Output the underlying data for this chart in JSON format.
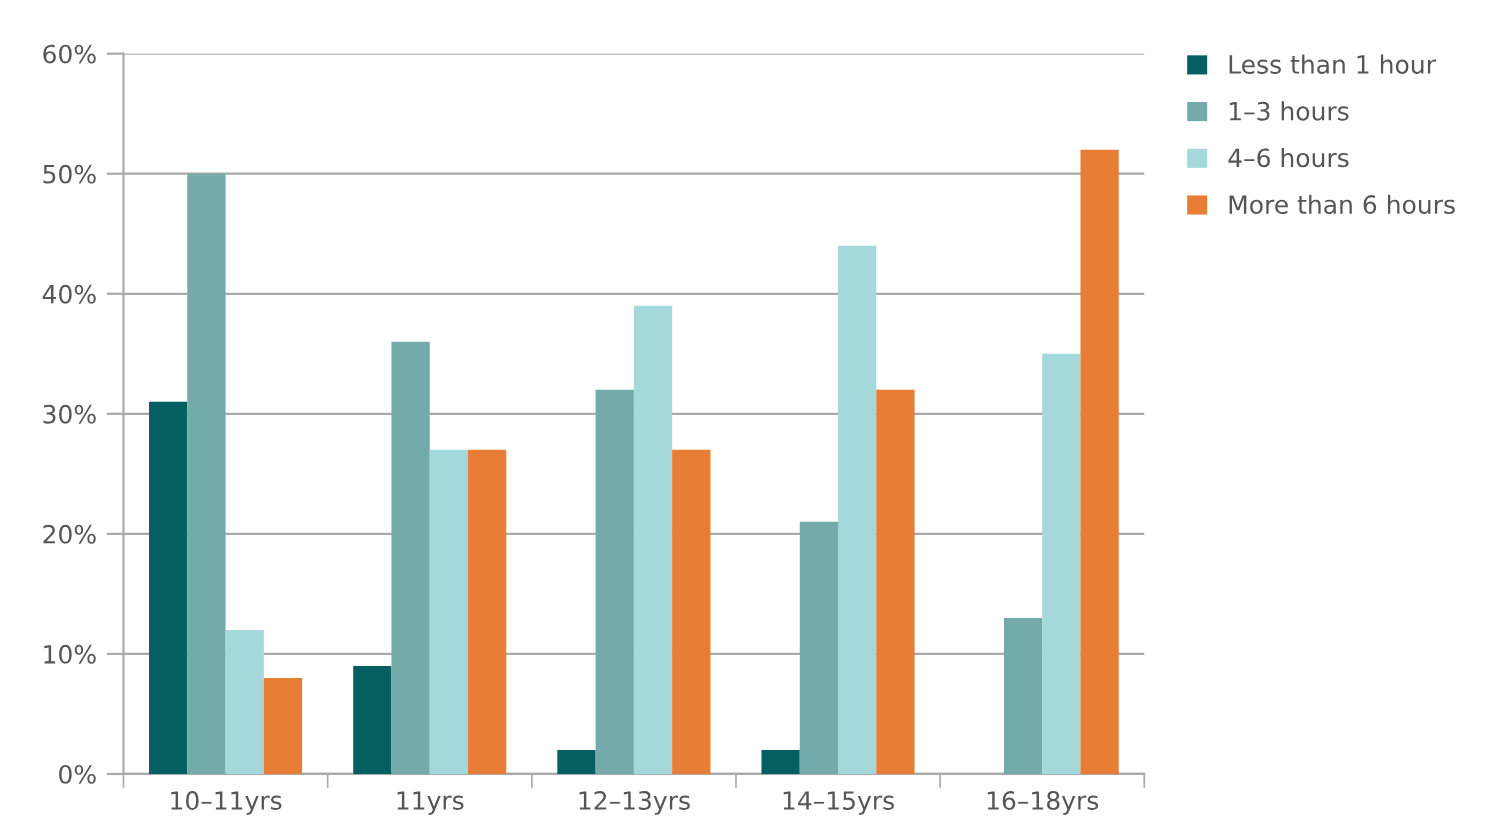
{
  "chart_data": {
    "type": "bar",
    "categories": [
      "10–11yrs",
      "11yrs",
      "12–13yrs",
      "14–15yrs",
      "16–18yrs"
    ],
    "series": [
      {
        "name": "Less than 1 hour",
        "color": "#045f63",
        "values": [
          31,
          9,
          2,
          2,
          0
        ]
      },
      {
        "name": "1–3 hours",
        "color": "#74aaaa",
        "values": [
          50,
          36,
          32,
          21,
          13
        ]
      },
      {
        "name": "4–6 hours",
        "color": "#a5d8da",
        "values": [
          12,
          27,
          39,
          44,
          35
        ]
      },
      {
        "name": "More than 6 hours",
        "color": "#e87d35",
        "values": [
          8,
          27,
          27,
          32,
          52
        ]
      }
    ],
    "ylim": [
      0,
      60
    ],
    "yticks": [
      {
        "value": 0,
        "label": "0%"
      },
      {
        "value": 10,
        "label": "10%"
      },
      {
        "value": 20,
        "label": "20%"
      },
      {
        "value": 30,
        "label": "30%"
      },
      {
        "value": 40,
        "label": "40%"
      },
      {
        "value": 50,
        "label": "50%"
      },
      {
        "value": 60,
        "label": "60%"
      }
    ],
    "grid": "y",
    "legend": "top right"
  }
}
